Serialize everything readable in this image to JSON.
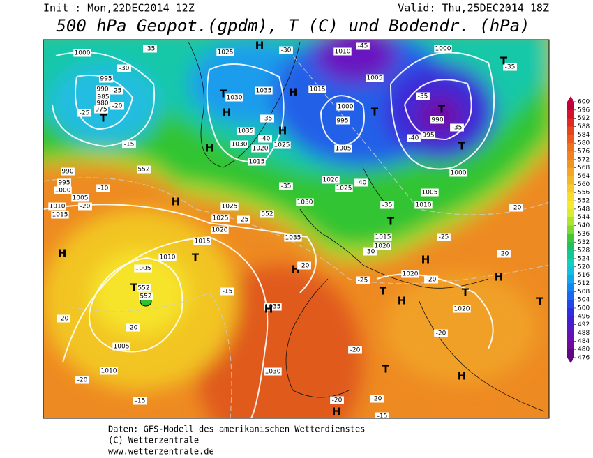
{
  "header": {
    "init": "Init : Mon,22DEC2014 12Z",
    "valid": "Valid: Thu,25DEC2014 18Z",
    "title": "500 hPa Geopot.(gpdm), T (C) und Bodendr. (hPa)"
  },
  "footer": [
    "Daten: GFS-Modell des amerikanischen Wetterdienstes",
    "(C) Wetterzentrale",
    "www.wetterzentrale.de"
  ],
  "colorbar": {
    "ticks": [
      600,
      596,
      592,
      588,
      584,
      580,
      576,
      572,
      568,
      564,
      560,
      556,
      552,
      548,
      544,
      540,
      536,
      532,
      528,
      524,
      520,
      516,
      512,
      508,
      504,
      500,
      496,
      492,
      488,
      484,
      480,
      476
    ],
    "colors": [
      "#c0003c",
      "#d4102a",
      "#e02a20",
      "#e8441c",
      "#ec5a1c",
      "#ef701e",
      "#f08220",
      "#f29422",
      "#f4a626",
      "#f5b82a",
      "#f6ca2c",
      "#f8dc2e",
      "#f4ea30",
      "#d8ec30",
      "#b0e430",
      "#80d830",
      "#40c838",
      "#20c060",
      "#10c890",
      "#10d0c0",
      "#10c0e0",
      "#10a8ec",
      "#1088f0",
      "#1868f0",
      "#2048e8",
      "#2830e0",
      "#4020d0",
      "#5818c0",
      "#6810b0",
      "#70089c",
      "#600880"
    ]
  },
  "map_labels": [
    "1000",
    "995",
    "990",
    "985",
    "980",
    "975",
    "T",
    "-35",
    "-30",
    "-25",
    "-20",
    "-25",
    "-15",
    "1025",
    "H",
    "-30",
    "1010",
    "-45",
    "1000",
    "-35",
    "T",
    "T",
    "1030",
    "1035",
    "H",
    "1015",
    "1005",
    "-35",
    "T",
    "990",
    "H",
    "1000",
    "995",
    "T",
    "995",
    "-35",
    "-40",
    "1035",
    "H",
    "1030",
    "1020",
    "1025",
    "-35",
    "-40",
    "H",
    "1005",
    "T",
    "1015",
    "990",
    "552",
    "995",
    "1000",
    "1005",
    "1010",
    "-10",
    "-20",
    "-35",
    "1020",
    "1025",
    "-40",
    "1000",
    "H",
    "1025",
    "1030",
    "1005",
    "1010",
    "-35",
    "-20",
    "1015",
    "1025",
    "-25",
    "552",
    "T",
    "1020",
    "1015",
    "1015",
    "1020",
    "-25",
    "1035",
    "H",
    "1010",
    "T",
    "-30",
    "H",
    "-20",
    "1005",
    "H",
    "-20",
    "-25",
    "1020",
    "-20",
    "H",
    "T",
    "552",
    "552",
    "T",
    "T",
    "H",
    "1020",
    "T",
    "-15",
    "1035",
    "H",
    "-20",
    "-20",
    "-20",
    "1005",
    "-20",
    "T",
    "H",
    "1010",
    "-20",
    "1030",
    "-15",
    "-20",
    "-20",
    "-15",
    "H"
  ]
}
